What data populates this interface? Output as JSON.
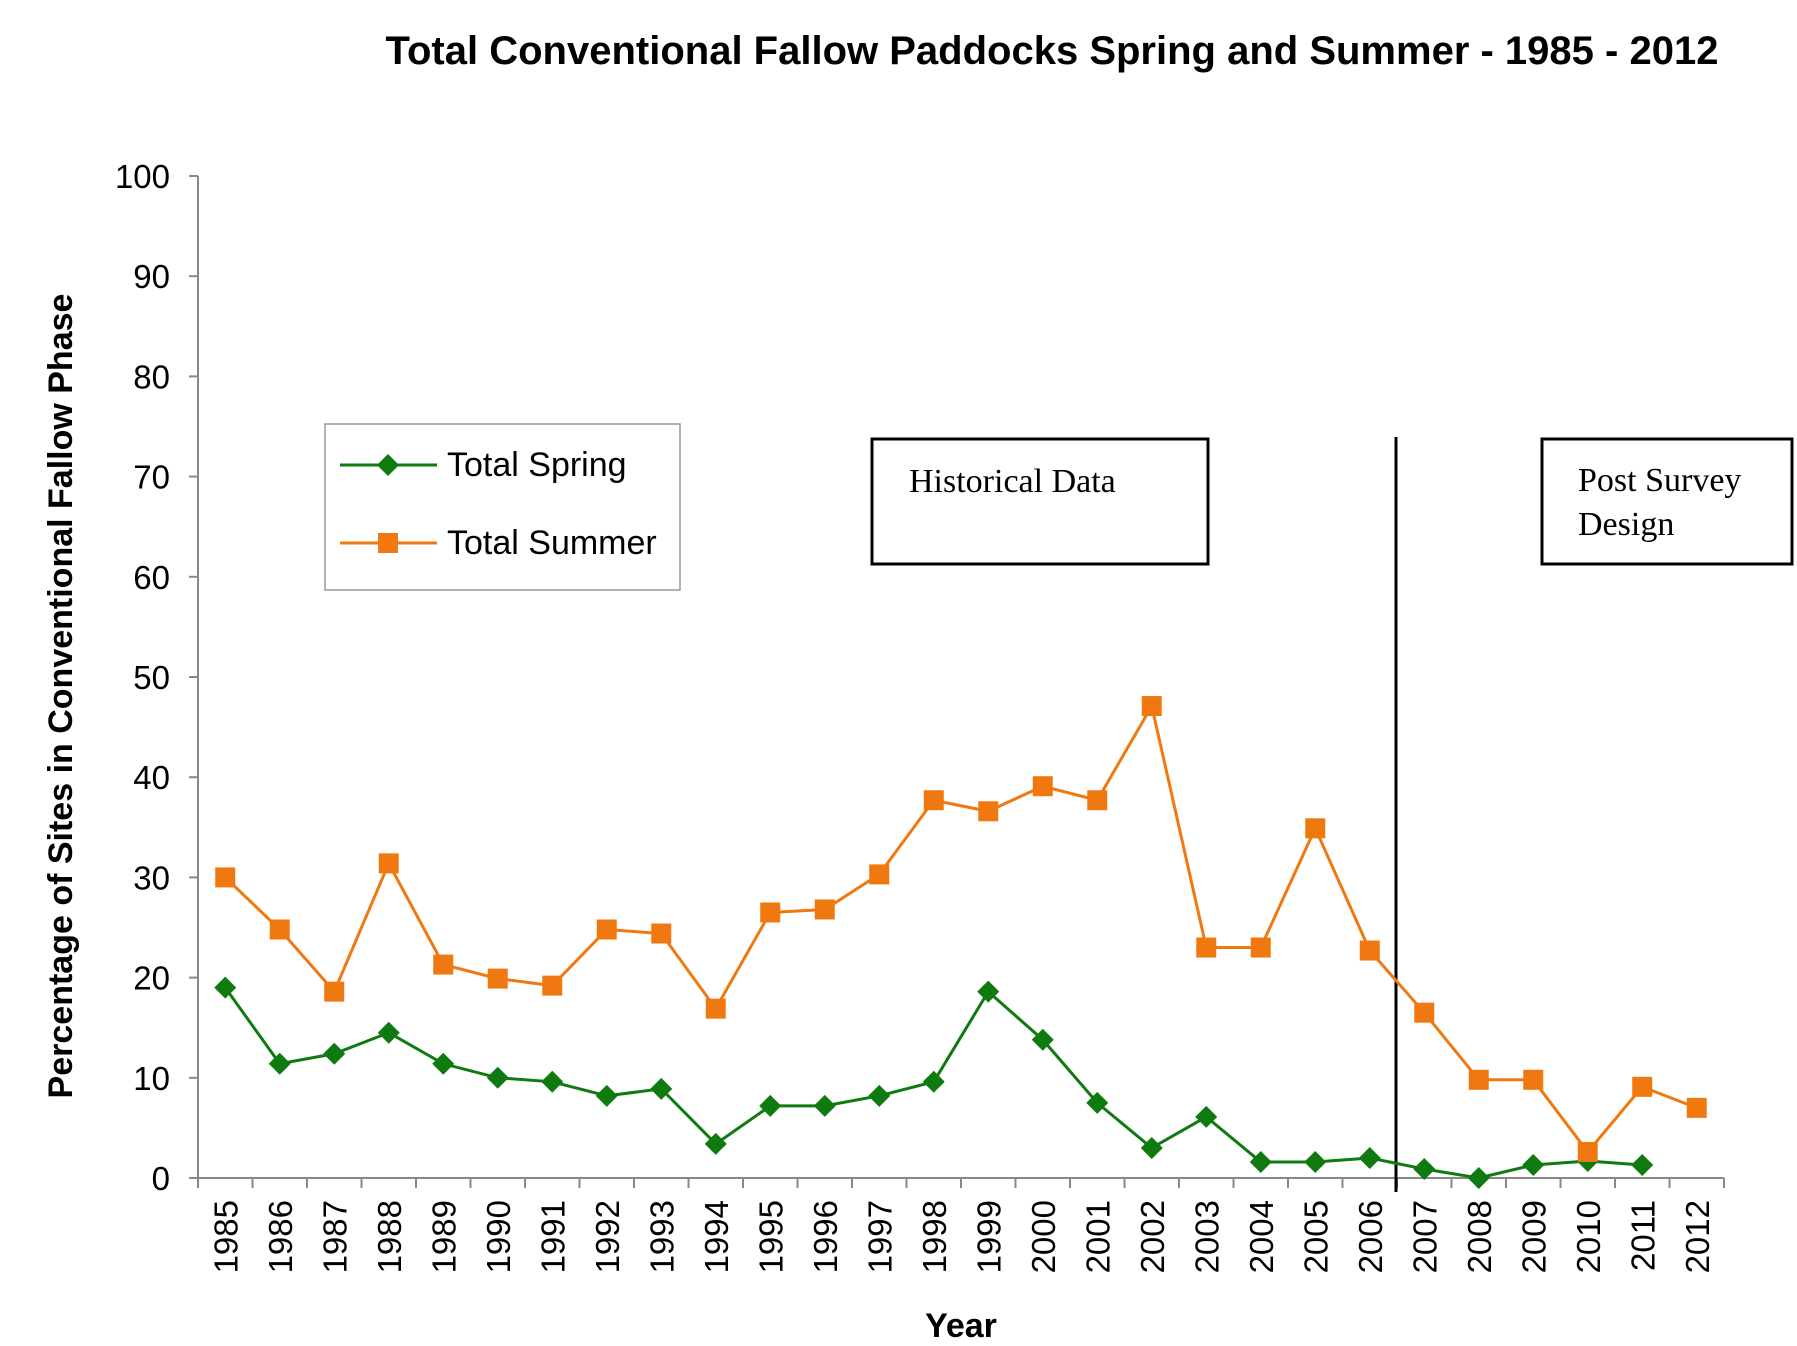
{
  "chart_data": {
    "type": "line",
    "title": "Total Conventional Fallow Paddocks Spring and Summer - 1985 - 2012",
    "xlabel": "Year",
    "ylabel": "Percentage of Sites in Conventional Fallow Phase",
    "ylim": [
      0,
      100
    ],
    "yticks": [
      0,
      10,
      20,
      30,
      40,
      50,
      60,
      70,
      80,
      90,
      100
    ],
    "grid": false,
    "legend_position": "upper-left",
    "categories": [
      "1985",
      "1986",
      "1987",
      "1988",
      "1989",
      "1990",
      "1991",
      "1992",
      "1993",
      "1994",
      "1995",
      "1996",
      "1997",
      "1998",
      "1999",
      "2000",
      "2001",
      "2002",
      "2003",
      "2004",
      "2005",
      "2006",
      "2007",
      "2008",
      "2009",
      "2010",
      "2011",
      "2012"
    ],
    "series": [
      {
        "name": "Total Spring",
        "color": "#0f7a0f",
        "marker": "diamond",
        "values": [
          19.0,
          11.4,
          12.4,
          14.5,
          11.4,
          10.0,
          9.6,
          8.2,
          8.9,
          3.4,
          7.2,
          7.2,
          8.2,
          9.6,
          18.6,
          13.8,
          7.5,
          3.0,
          6.1,
          1.6,
          1.6,
          2.0,
          0.9,
          0.0,
          1.3,
          1.7,
          1.3,
          null
        ]
      },
      {
        "name": "Total Summer",
        "color": "#f07810",
        "marker": "square",
        "values": [
          30.0,
          24.8,
          18.6,
          31.4,
          21.3,
          19.9,
          19.2,
          24.8,
          24.4,
          16.9,
          26.5,
          26.8,
          30.3,
          37.7,
          36.6,
          39.1,
          37.7,
          47.1,
          23.0,
          23.0,
          34.9,
          22.7,
          16.5,
          9.8,
          9.8,
          2.6,
          9.1,
          7.0
        ]
      }
    ],
    "annotations": {
      "historical_label": "Historical Data",
      "post_survey_line1": "Post Survey",
      "post_survey_line2": "Design",
      "divider_at": "2007"
    }
  }
}
